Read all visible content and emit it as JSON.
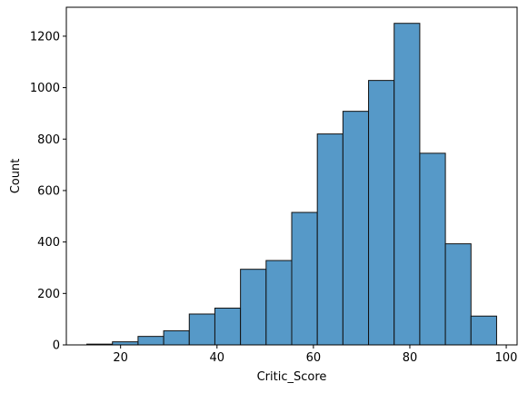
{
  "chart_data": {
    "type": "bar",
    "subtype": "histogram",
    "title": "",
    "xlabel": "Critic_Score",
    "ylabel": "Count",
    "bin_start": 13,
    "bin_width": 5.3125,
    "values": [
      3,
      12,
      33,
      55,
      120,
      143,
      294,
      328,
      515,
      820,
      908,
      1028,
      1250,
      745,
      393,
      112
    ],
    "xlim": [
      8.75,
      102.25
    ],
    "ylim": [
      0,
      1312.5
    ],
    "xticks": [
      20,
      40,
      60,
      80,
      100
    ],
    "yticks": [
      0,
      200,
      400,
      600,
      800,
      1000,
      1200
    ],
    "grid": false,
    "legend": "none",
    "colors": {
      "bar_fill": "#5699c8",
      "bar_edge": "#111111"
    }
  }
}
